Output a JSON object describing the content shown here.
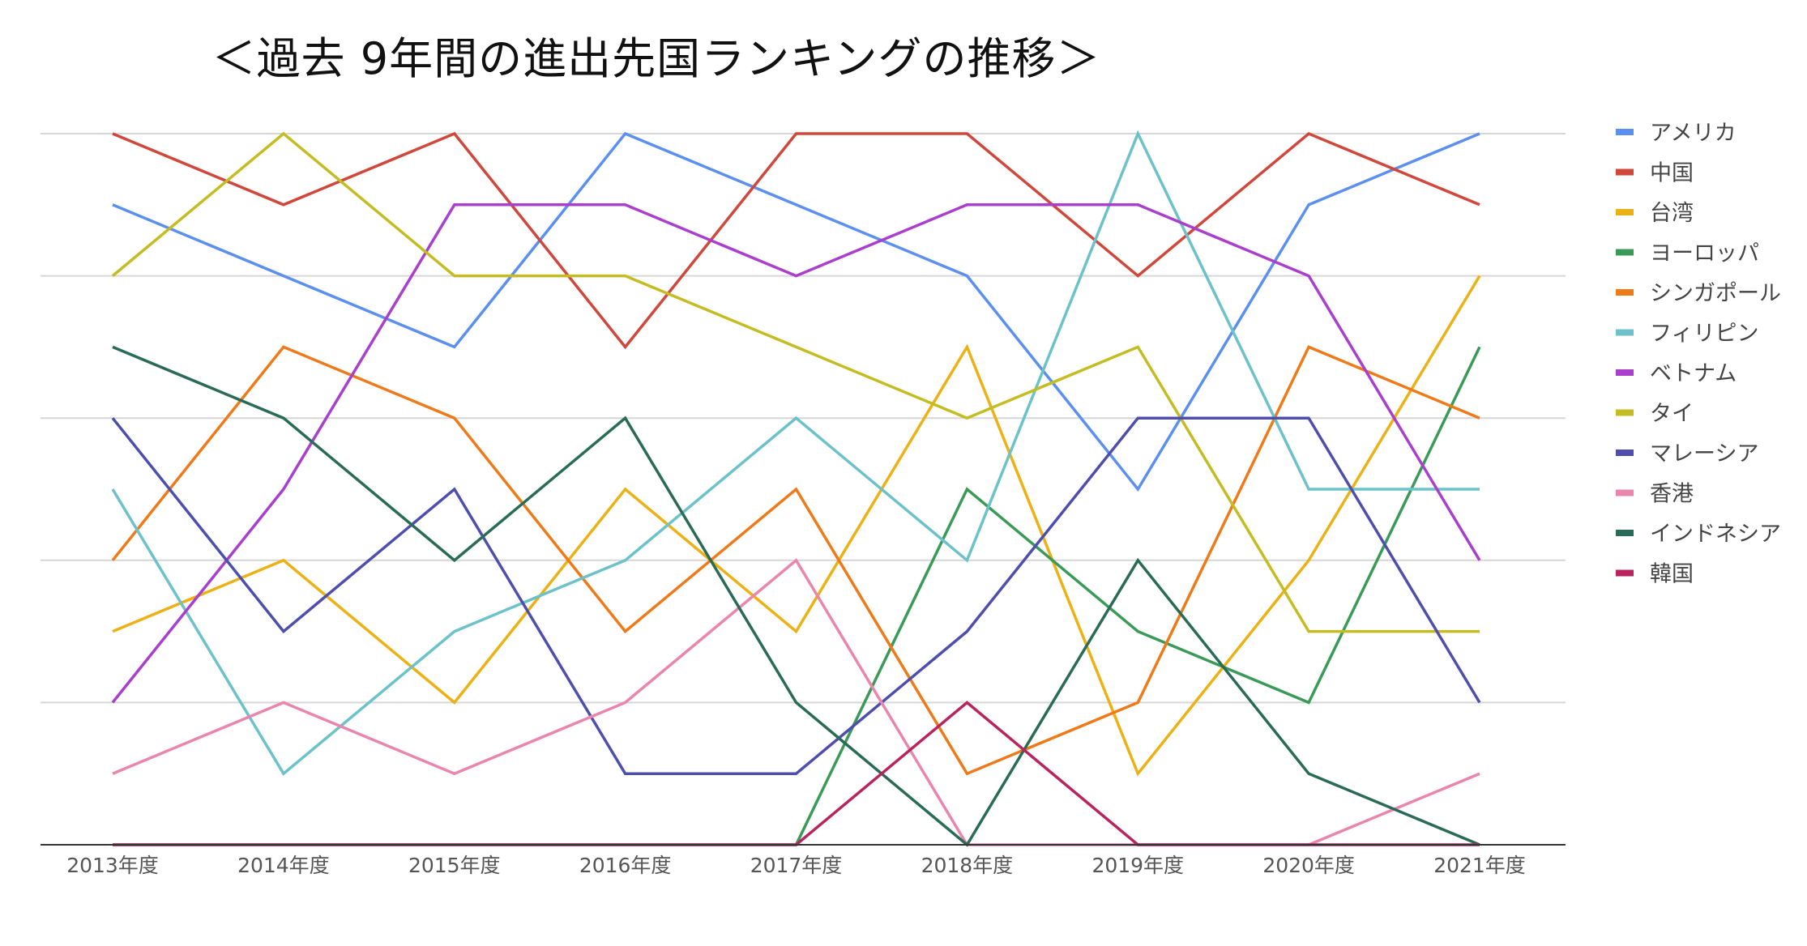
{
  "chart_data": {
    "type": "line",
    "title": "＜過去 9年間の進出先国ランキングの推移＞",
    "xlabel": "",
    "ylabel": "",
    "categories": [
      "2013年度",
      "2014年度",
      "2015年度",
      "2016年度",
      "2017年度",
      "2018年度",
      "2019年度",
      "2020年度",
      "2021年度"
    ],
    "ylim": [
      0,
      10
    ],
    "grid": true,
    "legend_position": "right",
    "series": [
      {
        "name": "アメリカ",
        "color": "#5b8ff0",
        "values": [
          9,
          8,
          7,
          10,
          9,
          8,
          5,
          9,
          10
        ]
      },
      {
        "name": "中国",
        "color": "#d0473b",
        "values": [
          10,
          9,
          10,
          7,
          10,
          10,
          8,
          10,
          9
        ]
      },
      {
        "name": "台湾",
        "color": "#ecb114",
        "values": [
          3,
          4,
          2,
          5,
          3,
          7,
          1,
          4,
          8
        ]
      },
      {
        "name": "ヨーロッパ",
        "color": "#3a9a58",
        "values": [
          0,
          0,
          0,
          0,
          0,
          5,
          3,
          2,
          7
        ]
      },
      {
        "name": "シンガポール",
        "color": "#ee7a1a",
        "values": [
          4,
          7,
          6,
          3,
          5,
          1,
          2,
          7,
          6
        ]
      },
      {
        "name": "フィリピン",
        "color": "#6cc2c8",
        "values": [
          5,
          1,
          3,
          4,
          6,
          4,
          10,
          5,
          5
        ]
      },
      {
        "name": "ベトナム",
        "color": "#a93fcc",
        "values": [
          2,
          5,
          9,
          9,
          8,
          9,
          9,
          8,
          4
        ]
      },
      {
        "name": "タイ",
        "color": "#c4bd22",
        "values": [
          8,
          10,
          8,
          8,
          7,
          6,
          7,
          3,
          3
        ]
      },
      {
        "name": "マレーシア",
        "color": "#4e4fad",
        "values": [
          6,
          3,
          5,
          1,
          1,
          3,
          6,
          6,
          2
        ]
      },
      {
        "name": "香港",
        "color": "#ea86ad",
        "values": [
          1,
          2,
          1,
          2,
          4,
          0,
          0,
          0,
          1
        ]
      },
      {
        "name": "インドネシア",
        "color": "#2a6b58",
        "values": [
          7,
          6,
          4,
          6,
          2,
          0,
          4,
          1,
          0
        ]
      },
      {
        "name": "韓国",
        "color": "#b8245e",
        "values": [
          0,
          0,
          0,
          0,
          0,
          2,
          0,
          0,
          0
        ]
      }
    ]
  }
}
